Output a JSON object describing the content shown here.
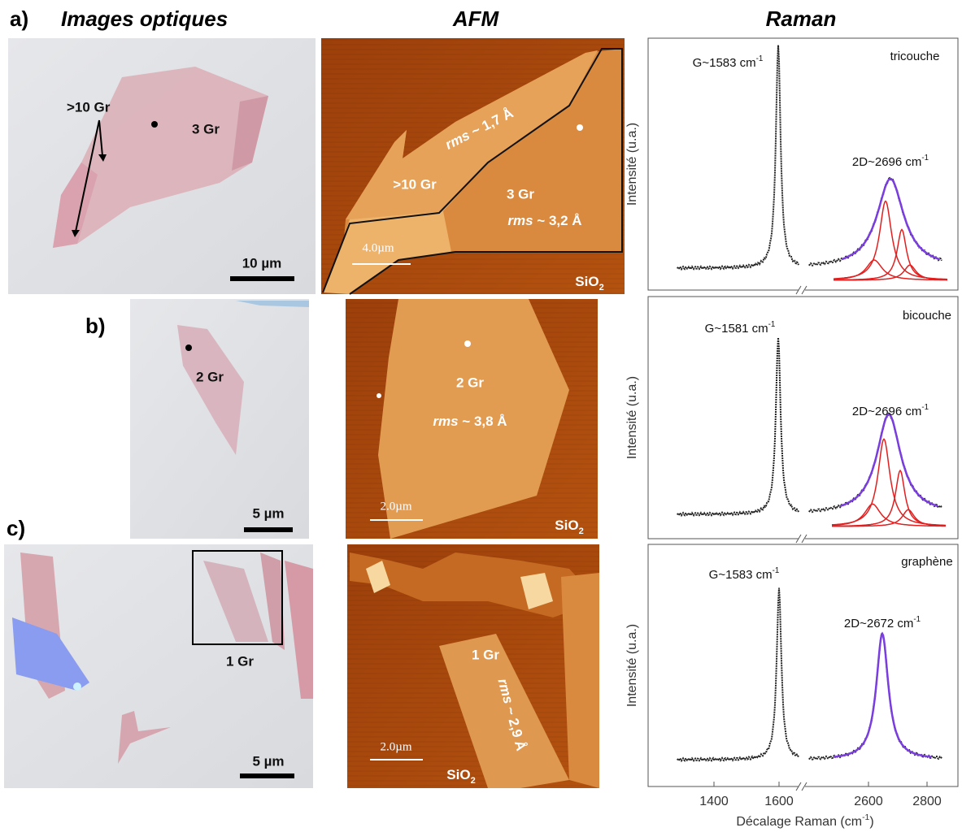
{
  "columns": [
    "Images optiques",
    "AFM",
    "Raman"
  ],
  "panels": [
    {
      "label": "a)",
      "optical": {
        "labels": [
          ">10 Gr",
          "3 Gr"
        ],
        "scale_bar": "10 µm"
      },
      "afm": {
        "labels": [
          ">10 Gr",
          "3 Gr"
        ],
        "rms": [
          {
            "em": "rms",
            "text": " ~ 1,7 Å"
          },
          {
            "em": "rms",
            "text": " ~ 3,2 Å"
          }
        ],
        "scale_bar": "4.0µm",
        "substrate": {
          "text": "SiO",
          "sub": "2"
        }
      },
      "raman": {
        "layer": "tricouche",
        "g_peak": {
          "text": "G~1583 cm",
          "sup": "-1"
        },
        "d2_peak": {
          "text": "2D~2696 cm",
          "sup": "-1"
        },
        "y_label": "Intensité (u.a.)"
      }
    },
    {
      "label": "b)",
      "optical": {
        "labels": [
          "2 Gr"
        ],
        "scale_bar": "5 µm"
      },
      "afm": {
        "labels": [
          "2 Gr"
        ],
        "rms": [
          {
            "em": "rms",
            "text": " ~ 3,8 Å"
          }
        ],
        "scale_bar": "2.0µm",
        "substrate": {
          "text": "SiO",
          "sub": "2"
        }
      },
      "raman": {
        "layer": "bicouche",
        "g_peak": {
          "text": "G~1581 cm",
          "sup": "-1"
        },
        "d2_peak": {
          "text": "2D~2696 cm",
          "sup": "-1"
        },
        "y_label": "Intensité (u.a.)"
      }
    },
    {
      "label": "c)",
      "optical": {
        "labels": [
          "1 Gr"
        ],
        "scale_bar": "5 µm"
      },
      "afm": {
        "labels": [
          "1 Gr"
        ],
        "rms": [
          {
            "em": "rms",
            "text": " ~ 2,9 Å"
          }
        ],
        "scale_bar": "2.0µm",
        "substrate": {
          "text": "SiO",
          "sub": "2"
        }
      },
      "raman": {
        "layer": "graphène",
        "g_peak": {
          "text": "G~1583 cm",
          "sup": "-1"
        },
        "d2_peak": {
          "text": "2D~2672 cm",
          "sup": "-1"
        },
        "y_label": "Intensité (u.a.)"
      }
    }
  ],
  "raman_axis": {
    "x_ticks": [
      1400,
      1600,
      2600,
      2800
    ],
    "x_label": {
      "text": "Décalage Raman (cm",
      "sup": "-1",
      "end": ")"
    }
  }
}
